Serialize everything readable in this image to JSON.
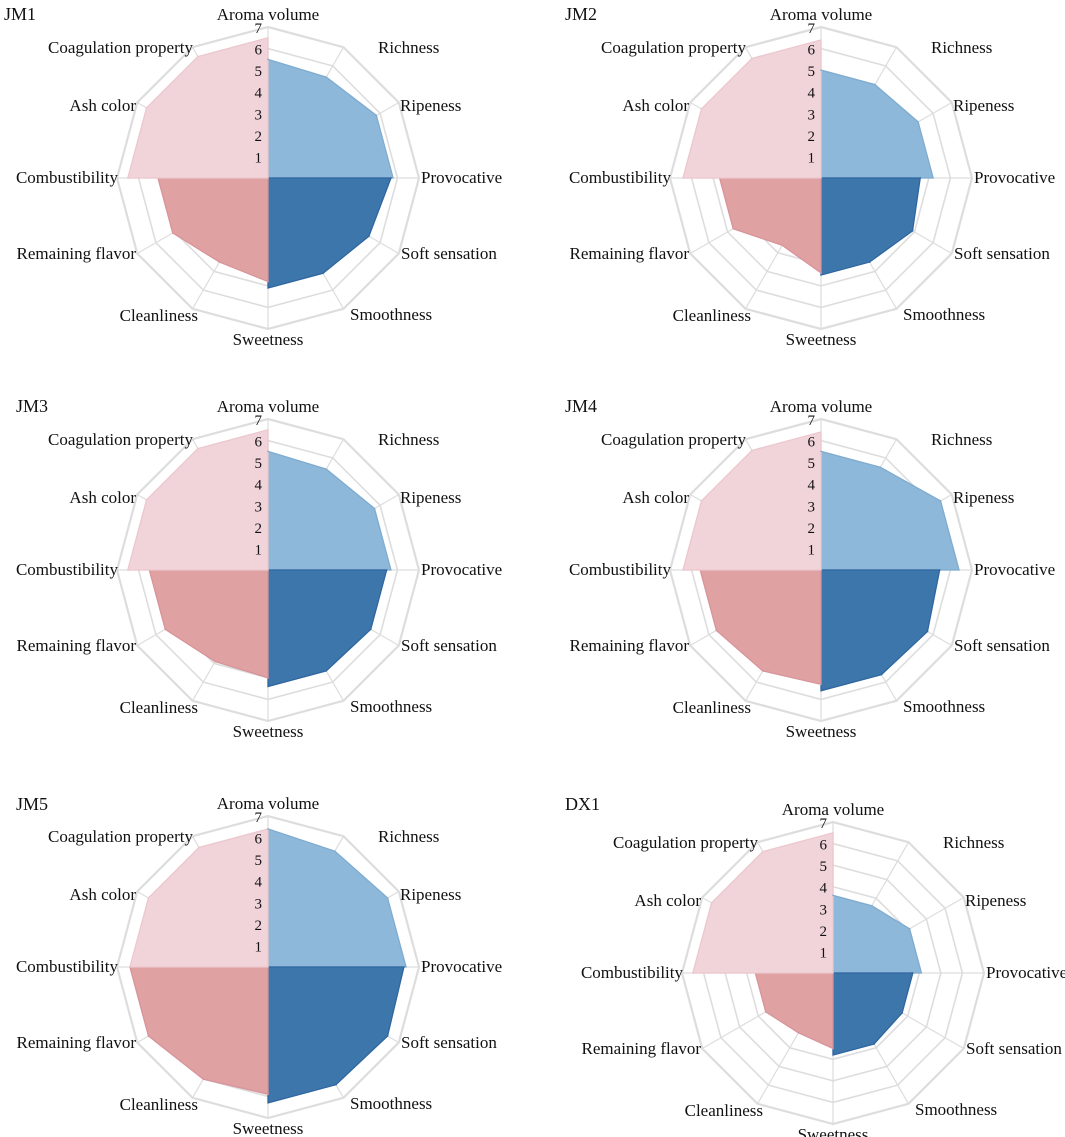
{
  "chart_data": [
    {
      "type": "radar",
      "title": "JM1",
      "scale_labels": [
        "1",
        "2",
        "3",
        "4",
        "5",
        "6",
        "7"
      ],
      "rmax": 7,
      "categories": [
        "Aroma volume",
        "Richness",
        "Ripeness",
        "Provocative",
        "Soft sensation",
        "Smoothness",
        "Sweetness",
        "Cleanliness",
        "Remaining flavor",
        "Combustibility",
        "Ash color",
        "Coagulation property"
      ],
      "values": [
        5.5,
        5.4,
        5.8,
        5.7,
        5.4,
        5.1,
        4.8,
        4.5,
        5.1,
        6.5,
        6.5,
        6.5
      ]
    },
    {
      "type": "radar",
      "title": "JM2",
      "scale_labels": [
        "1",
        "2",
        "3",
        "4",
        "5",
        "6",
        "7"
      ],
      "rmax": 7,
      "categories": [
        "Aroma volume",
        "Richness",
        "Ripeness",
        "Provocative",
        "Soft sensation",
        "Smoothness",
        "Sweetness",
        "Cleanliness",
        "Remaining flavor",
        "Combustibility",
        "Ash color",
        "Coagulation property"
      ],
      "values": [
        5.0,
        5.0,
        5.2,
        4.6,
        4.9,
        4.5,
        4.4,
        3.6,
        4.7,
        6.4,
        6.4,
        6.4
      ]
    },
    {
      "type": "radar",
      "title": "JM3",
      "scale_labels": [
        "1",
        "2",
        "3",
        "4",
        "5",
        "6",
        "7"
      ],
      "rmax": 7,
      "categories": [
        "Aroma volume",
        "Richness",
        "Ripeness",
        "Provocative",
        "Soft sensation",
        "Smoothness",
        "Sweetness",
        "Cleanliness",
        "Remaining flavor",
        "Combustibility",
        "Ash color",
        "Coagulation property"
      ],
      "values": [
        5.5,
        5.4,
        5.7,
        5.5,
        5.5,
        5.4,
        5.0,
        4.9,
        5.5,
        6.5,
        6.5,
        6.5
      ]
    },
    {
      "type": "radar",
      "title": "JM4",
      "scale_labels": [
        "1",
        "2",
        "3",
        "4",
        "5",
        "6",
        "7"
      ],
      "rmax": 7,
      "categories": [
        "Aroma volume",
        "Richness",
        "Ripeness",
        "Provocative",
        "Soft sensation",
        "Smoothness",
        "Sweetness",
        "Cleanliness",
        "Remaining flavor",
        "Combustibility",
        "Ash color",
        "Coagulation property"
      ],
      "values": [
        5.5,
        5.5,
        6.4,
        5.5,
        5.7,
        5.6,
        5.3,
        5.4,
        5.6,
        6.4,
        6.4,
        6.4
      ]
    },
    {
      "type": "radar",
      "title": "JM5",
      "scale_labels": [
        "1",
        "2",
        "3",
        "4",
        "5",
        "6",
        "7"
      ],
      "rmax": 7,
      "categories": [
        "Aroma volume",
        "Richness",
        "Ripeness",
        "Provocative",
        "Soft sensation",
        "Smoothness",
        "Sweetness",
        "Cleanliness",
        "Remaining flavor",
        "Combustibility",
        "Ash color",
        "Coagulation property"
      ],
      "values": [
        6.4,
        6.2,
        6.4,
        6.3,
        6.4,
        6.3,
        5.9,
        6.0,
        6.4,
        6.4,
        6.4,
        6.4
      ]
    },
    {
      "type": "radar",
      "title": "DX1",
      "scale_labels": [
        "1",
        "2",
        "3",
        "4",
        "5",
        "6",
        "7"
      ],
      "rmax": 7,
      "categories": [
        "Aroma volume",
        "Richness",
        "Ripeness",
        "Provocative",
        "Soft sensation",
        "Smoothness",
        "Sweetness",
        "Cleanliness",
        "Remaining flavor",
        "Combustibility",
        "Ash color",
        "Coagulation property"
      ],
      "values": [
        3.6,
        3.6,
        4.1,
        3.7,
        3.7,
        3.8,
        3.5,
        3.2,
        3.6,
        6.5,
        6.5,
        6.5
      ]
    }
  ],
  "colors": {
    "aroma_group": "#8db8d9",
    "taste_group": "#3d76aa",
    "aftertaste_group": "#e0a1a3",
    "physical_group": "#f0d4d9",
    "grid": "#dddddd"
  }
}
